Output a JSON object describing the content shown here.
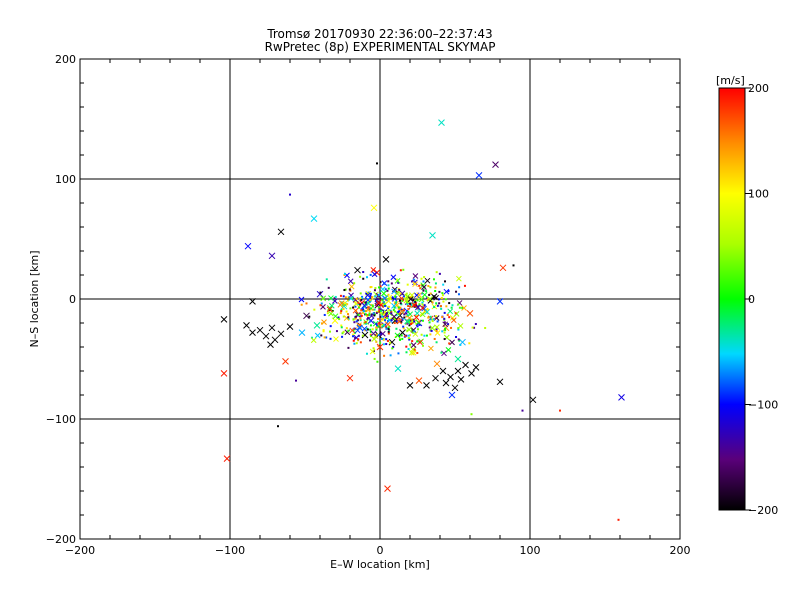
{
  "chart_data": {
    "type": "scatter",
    "title": "Tromsø 20170930 22:36:00–22:37:43",
    "subtitle": "RwPretec (8p) EXPERIMENTAL SKYMAP",
    "xlabel": "E–W location [km]",
    "ylabel": "N–S location [km]",
    "xlim": [
      -200,
      200
    ],
    "ylim": [
      -200,
      200
    ],
    "xticks": [
      "−200",
      "−100",
      "0",
      "100",
      "200"
    ],
    "yticks": [
      "−200",
      "−100",
      "0",
      "100",
      "200"
    ],
    "grid": true,
    "colorbar": {
      "label": "[m/s]",
      "range": [
        -200,
        200
      ],
      "ticks": [
        "200",
        "100",
        "0",
        "−100",
        "−200"
      ]
    },
    "markers": [
      "x",
      "dot"
    ],
    "points": [
      {
        "x": 41,
        "y": 147,
        "v": -40,
        "m": "x"
      },
      {
        "x": 77,
        "y": 112,
        "v": -160,
        "m": "x"
      },
      {
        "x": 66,
        "y": 103,
        "v": -90,
        "m": "x"
      },
      {
        "x": -2,
        "y": 113,
        "v": -200,
        "m": "dot"
      },
      {
        "x": -60,
        "y": 87,
        "v": -120,
        "m": "dot"
      },
      {
        "x": -4,
        "y": 76,
        "v": 100,
        "m": "x"
      },
      {
        "x": -44,
        "y": 67,
        "v": -50,
        "m": "x"
      },
      {
        "x": 35,
        "y": 53,
        "v": -40,
        "m": "x"
      },
      {
        "x": -66,
        "y": 56,
        "v": -200,
        "m": "x"
      },
      {
        "x": -88,
        "y": 44,
        "v": -100,
        "m": "x"
      },
      {
        "x": -72,
        "y": 36,
        "v": -130,
        "m": "x"
      },
      {
        "x": 82,
        "y": 26,
        "v": 180,
        "m": "x"
      },
      {
        "x": 89,
        "y": 28,
        "v": -200,
        "m": "dot"
      },
      {
        "x": 4,
        "y": 33,
        "v": -200,
        "m": "x"
      },
      {
        "x": -15,
        "y": 24,
        "v": -200,
        "m": "x"
      },
      {
        "x": -2,
        "y": 22,
        "v": 190,
        "m": "x"
      },
      {
        "x": -40,
        "y": 4,
        "v": -120,
        "m": "x"
      },
      {
        "x": 80,
        "y": -2,
        "v": -90,
        "m": "x"
      },
      {
        "x": -85,
        "y": -2,
        "v": -200,
        "m": "x"
      },
      {
        "x": -104,
        "y": -17,
        "v": -200,
        "m": "x"
      },
      {
        "x": -89,
        "y": -22,
        "v": -200,
        "m": "x"
      },
      {
        "x": -85,
        "y": -28,
        "v": -200,
        "m": "x"
      },
      {
        "x": -80,
        "y": -26,
        "v": -200,
        "m": "x"
      },
      {
        "x": -76,
        "y": -31,
        "v": -200,
        "m": "x"
      },
      {
        "x": -72,
        "y": -24,
        "v": -200,
        "m": "x"
      },
      {
        "x": -70,
        "y": -34,
        "v": -200,
        "m": "x"
      },
      {
        "x": -66,
        "y": -29,
        "v": -200,
        "m": "x"
      },
      {
        "x": -73,
        "y": -38,
        "v": -200,
        "m": "x"
      },
      {
        "x": -60,
        "y": -23,
        "v": -200,
        "m": "x"
      },
      {
        "x": -52,
        "y": -28,
        "v": -60,
        "m": "x"
      },
      {
        "x": -49,
        "y": -14,
        "v": -170,
        "m": "x"
      },
      {
        "x": -42,
        "y": -22,
        "v": -30,
        "m": "x"
      },
      {
        "x": -63,
        "y": -52,
        "v": 180,
        "m": "x"
      },
      {
        "x": -104,
        "y": -62,
        "v": 190,
        "m": "x"
      },
      {
        "x": -20,
        "y": -66,
        "v": 185,
        "m": "x"
      },
      {
        "x": -102,
        "y": -133,
        "v": 190,
        "m": "x"
      },
      {
        "x": 5,
        "y": -158,
        "v": 185,
        "m": "x"
      },
      {
        "x": 102,
        "y": -84,
        "v": -200,
        "m": "x"
      },
      {
        "x": 161,
        "y": -82,
        "v": -110,
        "m": "x"
      },
      {
        "x": 120,
        "y": -93,
        "v": 185,
        "m": "dot"
      },
      {
        "x": 95,
        "y": -93,
        "v": -140,
        "m": "dot"
      },
      {
        "x": 159,
        "y": -184,
        "v": 190,
        "m": "dot"
      },
      {
        "x": 61,
        "y": -96,
        "v": 40,
        "m": "dot"
      },
      {
        "x": -68,
        "y": -106,
        "v": -200,
        "m": "dot"
      },
      {
        "x": -56,
        "y": -68,
        "v": -140,
        "m": "dot"
      },
      {
        "x": 20,
        "y": -72,
        "v": -200,
        "m": "x"
      },
      {
        "x": 31,
        "y": -72,
        "v": -200,
        "m": "x"
      },
      {
        "x": 37,
        "y": -66,
        "v": -200,
        "m": "x"
      },
      {
        "x": 42,
        "y": -60,
        "v": -200,
        "m": "x"
      },
      {
        "x": 44,
        "y": -70,
        "v": -200,
        "m": "x"
      },
      {
        "x": 47,
        "y": -65,
        "v": -200,
        "m": "x"
      },
      {
        "x": 50,
        "y": -74,
        "v": -200,
        "m": "x"
      },
      {
        "x": 52,
        "y": -60,
        "v": -200,
        "m": "x"
      },
      {
        "x": 54,
        "y": -67,
        "v": -200,
        "m": "x"
      },
      {
        "x": 57,
        "y": -55,
        "v": -200,
        "m": "x"
      },
      {
        "x": 61,
        "y": -62,
        "v": -200,
        "m": "x"
      },
      {
        "x": 64,
        "y": -57,
        "v": -200,
        "m": "x"
      },
      {
        "x": 80,
        "y": -69,
        "v": -200,
        "m": "x"
      },
      {
        "x": 48,
        "y": -80,
        "v": -90,
        "m": "x"
      },
      {
        "x": 26,
        "y": -68,
        "v": 170,
        "m": "x"
      },
      {
        "x": 38,
        "y": -54,
        "v": 150,
        "m": "x"
      },
      {
        "x": 52,
        "y": -50,
        "v": -30,
        "m": "x"
      },
      {
        "x": 12,
        "y": -58,
        "v": -40,
        "m": "x"
      },
      {
        "x": 22,
        "y": -42,
        "v": 60,
        "m": "x"
      },
      {
        "x": 8,
        "y": -36,
        "v": -200,
        "m": "x"
      },
      {
        "x": -1,
        "y": -30,
        "v": -200,
        "m": "x"
      },
      {
        "x": 3,
        "y": -22,
        "v": -120,
        "m": "x"
      },
      {
        "x": 10,
        "y": -18,
        "v": -200,
        "m": "x"
      },
      {
        "x": 15,
        "y": -28,
        "v": -200,
        "m": "x"
      },
      {
        "x": -6,
        "y": -18,
        "v": -110,
        "m": "x"
      },
      {
        "x": -10,
        "y": -30,
        "v": -200,
        "m": "x"
      },
      {
        "x": 18,
        "y": -10,
        "v": -90,
        "m": "x"
      },
      {
        "x": 30,
        "y": -10,
        "v": 120,
        "m": "x"
      },
      {
        "x": 44,
        "y": -24,
        "v": 140,
        "m": "x"
      },
      {
        "x": -24,
        "y": -6,
        "v": -40,
        "m": "x"
      },
      {
        "x": -30,
        "y": -18,
        "v": 100,
        "m": "x"
      },
      {
        "x": 0,
        "y": -40,
        "v": 180,
        "m": "x"
      },
      {
        "x": 36,
        "y": 2,
        "v": -200,
        "m": "x"
      },
      {
        "x": -16,
        "y": -4,
        "v": 80,
        "m": "x"
      },
      {
        "x": 26,
        "y": -20,
        "v": -110,
        "m": "x"
      },
      {
        "x": 60,
        "y": -12,
        "v": 170,
        "m": "x"
      },
      {
        "x": 55,
        "y": -36,
        "v": -60,
        "m": "x"
      }
    ]
  }
}
